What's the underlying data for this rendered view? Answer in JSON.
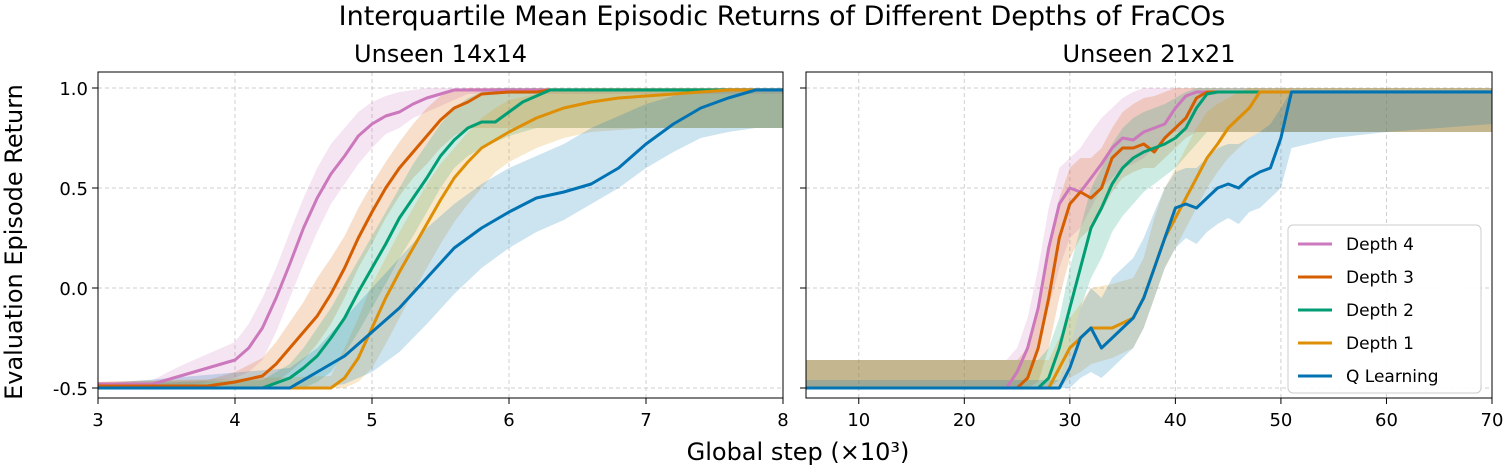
{
  "figure": {
    "suptitle": "Interquartile Mean Episodic Returns of Different Depths of FraCOs",
    "xlabel": "Global step (×10³)",
    "ylabel": "Evaluation Episode Return"
  },
  "legend": {
    "placement": "lower-right of right panel",
    "entries": [
      "Depth 4",
      "Depth 3",
      "Depth 2",
      "Depth 1",
      "Q Learning"
    ]
  },
  "colors": {
    "Depth 4": "#cc78bc",
    "Depth 3": "#d55e00",
    "Depth 2": "#029e73",
    "Depth 1": "#de8f05",
    "Q Learning": "#0173b2"
  },
  "chart_data": [
    {
      "type": "line",
      "title": "Unseen 14x14",
      "xlim": [
        3,
        8
      ],
      "ylim": [
        -0.55,
        1.08
      ],
      "xticks": [
        "3",
        "4",
        "5",
        "6",
        "7",
        "8"
      ],
      "yticks": [
        "-0.5",
        "0.0",
        "0.5",
        "1.0"
      ],
      "grid": true,
      "series": [
        {
          "name": "Depth 4",
          "x": [
            3.0,
            3.4,
            3.6,
            3.8,
            4.0,
            4.1,
            4.2,
            4.3,
            4.4,
            4.5,
            4.6,
            4.7,
            4.8,
            4.9,
            5.0,
            5.1,
            5.2,
            5.3,
            5.4,
            5.5,
            5.6,
            5.7,
            8.0
          ],
          "y": [
            -0.48,
            -0.48,
            -0.44,
            -0.4,
            -0.36,
            -0.3,
            -0.2,
            -0.05,
            0.12,
            0.3,
            0.45,
            0.57,
            0.66,
            0.76,
            0.82,
            0.86,
            0.88,
            0.92,
            0.95,
            0.97,
            0.99,
            0.99,
            0.99
          ],
          "lo": [
            -0.5,
            -0.5,
            -0.5,
            -0.47,
            -0.45,
            -0.42,
            -0.36,
            -0.22,
            -0.05,
            0.12,
            0.28,
            0.42,
            0.52,
            0.62,
            0.7,
            0.77,
            0.8,
            0.85,
            0.88,
            0.91,
            0.94,
            0.97,
            0.97
          ],
          "hi": [
            -0.47,
            -0.46,
            -0.39,
            -0.33,
            -0.27,
            -0.18,
            -0.05,
            0.1,
            0.28,
            0.45,
            0.6,
            0.72,
            0.8,
            0.88,
            0.93,
            0.96,
            0.98,
            0.99,
            1.0,
            1.0,
            1.0,
            1.0,
            1.0
          ]
        },
        {
          "name": "Depth 3",
          "x": [
            3.0,
            3.8,
            4.0,
            4.2,
            4.3,
            4.4,
            4.5,
            4.6,
            4.7,
            4.8,
            4.9,
            5.0,
            5.1,
            5.2,
            5.3,
            5.4,
            5.5,
            5.6,
            5.7,
            5.8,
            6.0,
            6.2,
            6.3,
            8.0
          ],
          "y": [
            -0.49,
            -0.49,
            -0.47,
            -0.44,
            -0.38,
            -0.3,
            -0.22,
            -0.14,
            -0.03,
            0.1,
            0.25,
            0.38,
            0.5,
            0.6,
            0.68,
            0.76,
            0.84,
            0.9,
            0.93,
            0.97,
            0.98,
            0.98,
            0.99,
            0.99
          ],
          "lo": [
            -0.5,
            -0.5,
            -0.5,
            -0.5,
            -0.47,
            -0.42,
            -0.36,
            -0.28,
            -0.18,
            -0.05,
            0.1,
            0.22,
            0.35,
            0.46,
            0.55,
            0.62,
            0.7,
            0.76,
            0.8,
            0.8,
            0.8,
            0.8,
            0.8,
            0.8
          ],
          "hi": [
            -0.47,
            -0.46,
            -0.42,
            -0.35,
            -0.27,
            -0.17,
            -0.07,
            0.05,
            0.15,
            0.26,
            0.4,
            0.52,
            0.63,
            0.73,
            0.82,
            0.9,
            0.96,
            0.99,
            1.0,
            1.0,
            1.0,
            1.0,
            1.0,
            1.0
          ]
        },
        {
          "name": "Depth 2",
          "x": [
            3.0,
            4.2,
            4.4,
            4.5,
            4.6,
            4.7,
            4.8,
            4.9,
            5.0,
            5.1,
            5.2,
            5.3,
            5.4,
            5.5,
            5.6,
            5.7,
            5.8,
            5.9,
            6.0,
            6.1,
            6.2,
            6.3,
            8.0
          ],
          "y": [
            -0.5,
            -0.5,
            -0.45,
            -0.4,
            -0.34,
            -0.25,
            -0.15,
            -0.02,
            0.1,
            0.22,
            0.35,
            0.45,
            0.55,
            0.66,
            0.74,
            0.8,
            0.83,
            0.83,
            0.88,
            0.93,
            0.96,
            0.99,
            0.99
          ],
          "lo": [
            -0.5,
            -0.5,
            -0.5,
            -0.5,
            -0.47,
            -0.42,
            -0.33,
            -0.22,
            -0.1,
            0.02,
            0.15,
            0.26,
            0.38,
            0.5,
            0.6,
            0.66,
            0.7,
            0.73,
            0.76,
            0.78,
            0.8,
            0.8,
            0.8
          ],
          "hi": [
            -0.48,
            -0.46,
            -0.38,
            -0.3,
            -0.2,
            -0.1,
            0.02,
            0.14,
            0.26,
            0.38,
            0.5,
            0.62,
            0.72,
            0.82,
            0.9,
            0.95,
            0.98,
            1.0,
            1.0,
            1.0,
            1.0,
            1.0,
            1.0
          ]
        },
        {
          "name": "Depth 1",
          "x": [
            3.0,
            4.7,
            4.8,
            4.9,
            5.0,
            5.1,
            5.2,
            5.3,
            5.4,
            5.5,
            5.6,
            5.7,
            5.8,
            5.9,
            6.0,
            6.2,
            6.4,
            6.6,
            6.8,
            7.0,
            7.2,
            7.4,
            7.6,
            8.0
          ],
          "y": [
            -0.5,
            -0.5,
            -0.45,
            -0.35,
            -0.2,
            -0.05,
            0.08,
            0.2,
            0.32,
            0.44,
            0.55,
            0.63,
            0.7,
            0.74,
            0.78,
            0.85,
            0.9,
            0.93,
            0.95,
            0.96,
            0.97,
            0.98,
            0.99,
            0.99
          ],
          "lo": [
            -0.5,
            -0.5,
            -0.5,
            -0.47,
            -0.4,
            -0.28,
            -0.15,
            -0.02,
            0.1,
            0.22,
            0.33,
            0.42,
            0.5,
            0.58,
            0.63,
            0.7,
            0.75,
            0.78,
            0.79,
            0.8,
            0.8,
            0.8,
            0.8,
            0.8
          ],
          "hi": [
            -0.47,
            -0.44,
            -0.3,
            -0.15,
            0.02,
            0.15,
            0.28,
            0.4,
            0.52,
            0.62,
            0.7,
            0.78,
            0.85,
            0.9,
            0.94,
            0.97,
            0.99,
            1.0,
            1.0,
            1.0,
            1.0,
            1.0,
            1.0,
            1.0
          ]
        },
        {
          "name": "Q Learning",
          "x": [
            3.0,
            4.4,
            4.6,
            4.8,
            5.0,
            5.2,
            5.4,
            5.6,
            5.8,
            6.0,
            6.2,
            6.4,
            6.6,
            6.8,
            7.0,
            7.2,
            7.4,
            7.6,
            7.8,
            8.0
          ],
          "y": [
            -0.5,
            -0.5,
            -0.42,
            -0.34,
            -0.22,
            -0.1,
            0.05,
            0.2,
            0.3,
            0.38,
            0.45,
            0.48,
            0.52,
            0.6,
            0.72,
            0.82,
            0.9,
            0.95,
            0.99,
            0.99
          ],
          "lo": [
            -0.5,
            -0.5,
            -0.5,
            -0.48,
            -0.42,
            -0.32,
            -0.18,
            -0.03,
            0.1,
            0.2,
            0.28,
            0.34,
            0.42,
            0.5,
            0.6,
            0.68,
            0.75,
            0.78,
            0.8,
            0.8
          ],
          "hi": [
            -0.48,
            -0.4,
            -0.3,
            -0.15,
            0.0,
            0.15,
            0.3,
            0.42,
            0.52,
            0.6,
            0.66,
            0.72,
            0.8,
            0.86,
            0.92,
            0.96,
            0.99,
            1.0,
            1.0,
            1.0
          ]
        }
      ]
    },
    {
      "type": "line",
      "title": "Unseen 21x21",
      "xlim": [
        5,
        70
      ],
      "ylim": [
        -0.55,
        1.08
      ],
      "xticks": [
        "10",
        "20",
        "30",
        "40",
        "50",
        "60",
        "70"
      ],
      "yticks": [
        "-0.5",
        "0.0",
        "0.5",
        "1.0"
      ],
      "grid": true,
      "series": [
        {
          "name": "Depth 4",
          "x": [
            5,
            24,
            25,
            26,
            27,
            28,
            29,
            30,
            31,
            32,
            33,
            34,
            35,
            36,
            37,
            38,
            39,
            40,
            41,
            42,
            70
          ],
          "y": [
            -0.5,
            -0.5,
            -0.42,
            -0.3,
            -0.1,
            0.2,
            0.42,
            0.5,
            0.48,
            0.55,
            0.62,
            0.7,
            0.75,
            0.74,
            0.78,
            0.8,
            0.82,
            0.9,
            0.96,
            0.98,
            0.98
          ],
          "lo": [
            -0.5,
            -0.5,
            -0.5,
            -0.45,
            -0.3,
            -0.1,
            0.1,
            0.25,
            0.3,
            0.4,
            0.5,
            0.55,
            0.6,
            0.62,
            0.65,
            0.7,
            0.75,
            0.78,
            0.78,
            0.78,
            0.78
          ],
          "hi": [
            -0.36,
            -0.36,
            -0.3,
            -0.15,
            0.1,
            0.4,
            0.6,
            0.65,
            0.7,
            0.78,
            0.85,
            0.9,
            0.95,
            0.98,
            1.0,
            1.0,
            1.0,
            1.0,
            1.0,
            1.0,
            1.0
          ]
        },
        {
          "name": "Depth 3",
          "x": [
            5,
            25,
            26,
            27,
            28,
            29,
            30,
            31,
            32,
            33,
            34,
            35,
            36,
            37,
            38,
            39,
            40,
            41,
            42,
            43,
            70
          ],
          "y": [
            -0.5,
            -0.5,
            -0.45,
            -0.3,
            -0.05,
            0.25,
            0.42,
            0.48,
            0.45,
            0.5,
            0.65,
            0.7,
            0.7,
            0.72,
            0.68,
            0.75,
            0.8,
            0.85,
            0.95,
            0.98,
            0.98
          ],
          "lo": [
            -0.5,
            -0.5,
            -0.5,
            -0.47,
            -0.3,
            -0.05,
            0.15,
            0.25,
            0.3,
            0.38,
            0.48,
            0.55,
            0.58,
            0.6,
            0.6,
            0.65,
            0.7,
            0.75,
            0.78,
            0.78,
            0.78
          ],
          "hi": [
            -0.36,
            -0.36,
            -0.3,
            -0.1,
            0.2,
            0.45,
            0.6,
            0.65,
            0.65,
            0.7,
            0.8,
            0.88,
            0.92,
            0.95,
            0.96,
            0.98,
            1.0,
            1.0,
            1.0,
            1.0,
            1.0
          ]
        },
        {
          "name": "Depth 2",
          "x": [
            5,
            27,
            28,
            29,
            30,
            31,
            32,
            33,
            34,
            35,
            36,
            37,
            38,
            39,
            40,
            41,
            42,
            43,
            44,
            46,
            48,
            70
          ],
          "y": [
            -0.5,
            -0.5,
            -0.45,
            -0.3,
            -0.1,
            0.1,
            0.3,
            0.4,
            0.52,
            0.6,
            0.65,
            0.68,
            0.7,
            0.72,
            0.75,
            0.8,
            0.9,
            0.97,
            0.98,
            0.98,
            0.98,
            0.98
          ],
          "lo": [
            -0.5,
            -0.5,
            -0.5,
            -0.46,
            -0.3,
            -0.1,
            0.05,
            0.15,
            0.28,
            0.36,
            0.42,
            0.48,
            0.52,
            0.56,
            0.6,
            0.66,
            0.72,
            0.78,
            0.78,
            0.78,
            0.78,
            0.78
          ],
          "hi": [
            -0.36,
            -0.36,
            -0.3,
            -0.15,
            0.1,
            0.3,
            0.5,
            0.6,
            0.72,
            0.8,
            0.85,
            0.88,
            0.9,
            0.92,
            0.95,
            0.98,
            1.0,
            1.0,
            1.0,
            1.0,
            1.0,
            1.0
          ]
        },
        {
          "name": "Depth 1",
          "x": [
            5,
            28,
            29,
            30,
            31,
            32,
            34,
            36,
            37,
            38,
            39,
            40,
            41,
            42,
            43,
            44,
            45,
            46,
            47,
            48,
            50,
            70
          ],
          "y": [
            -0.5,
            -0.5,
            -0.4,
            -0.3,
            -0.25,
            -0.2,
            -0.2,
            -0.15,
            -0.05,
            0.1,
            0.25,
            0.35,
            0.45,
            0.55,
            0.65,
            0.72,
            0.8,
            0.85,
            0.9,
            0.98,
            0.98,
            0.98
          ],
          "lo": [
            -0.5,
            -0.5,
            -0.5,
            -0.45,
            -0.42,
            -0.38,
            -0.35,
            -0.3,
            -0.2,
            -0.05,
            0.1,
            0.2,
            0.3,
            0.4,
            0.5,
            0.58,
            0.65,
            0.7,
            0.75,
            0.78,
            0.78,
            0.78
          ],
          "hi": [
            -0.36,
            -0.36,
            -0.25,
            -0.15,
            -0.08,
            0.0,
            0.02,
            0.05,
            0.15,
            0.35,
            0.5,
            0.6,
            0.7,
            0.8,
            0.88,
            0.92,
            0.95,
            0.98,
            1.0,
            1.0,
            1.0,
            1.0
          ]
        },
        {
          "name": "Q Learning",
          "x": [
            5,
            29,
            30,
            31,
            32,
            33,
            34,
            35,
            36,
            37,
            38,
            39,
            40,
            41,
            42,
            43,
            44,
            45,
            46,
            47,
            48,
            49,
            50,
            51,
            55,
            60,
            65,
            70
          ],
          "y": [
            -0.5,
            -0.5,
            -0.4,
            -0.25,
            -0.2,
            -0.3,
            -0.25,
            -0.2,
            -0.15,
            -0.05,
            0.1,
            0.25,
            0.4,
            0.42,
            0.4,
            0.45,
            0.5,
            0.52,
            0.5,
            0.55,
            0.58,
            0.6,
            0.75,
            0.98,
            0.98,
            0.98,
            0.98,
            0.98
          ],
          "lo": [
            -0.5,
            -0.5,
            -0.5,
            -0.45,
            -0.42,
            -0.45,
            -0.4,
            -0.35,
            -0.3,
            -0.2,
            -0.05,
            0.1,
            0.2,
            0.25,
            0.22,
            0.28,
            0.32,
            0.35,
            0.32,
            0.38,
            0.4,
            0.45,
            0.5,
            0.7,
            0.75,
            0.78,
            0.8,
            0.82
          ],
          "hi": [
            -0.46,
            -0.46,
            -0.3,
            -0.1,
            0.0,
            -0.05,
            0.05,
            0.1,
            0.15,
            0.25,
            0.38,
            0.5,
            0.58,
            0.6,
            0.6,
            0.65,
            0.7,
            0.72,
            0.72,
            0.75,
            0.78,
            0.82,
            0.9,
            0.99,
            0.99,
            0.99,
            0.99,
            0.99
          ]
        }
      ]
    }
  ]
}
